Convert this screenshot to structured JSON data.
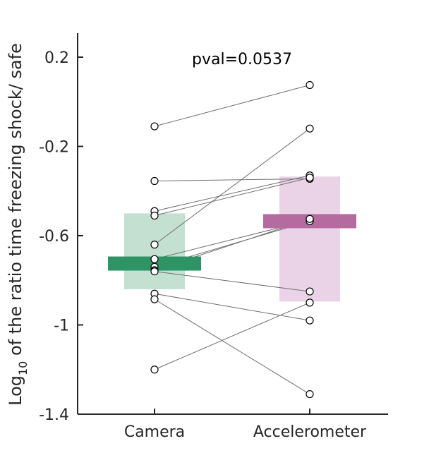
{
  "chart_data": {
    "type": "scatter",
    "title": "",
    "ylabel_parts": {
      "pre": "Log",
      "sub": "10",
      "post": " of the ratio time freezing shock/ safe"
    },
    "xlabel": "",
    "categories": [
      "Camera",
      "Accelerometer"
    ],
    "ylim": [
      -1.4,
      0.3
    ],
    "yticks": [
      0.2,
      -0.2,
      -0.6,
      -1,
      -1.4
    ],
    "ytick_labels": [
      "0.2",
      "-0.2",
      "-0.6",
      "-1",
      "-1.4"
    ],
    "annotation": "pval=0.0537",
    "grid": false,
    "colors": {
      "camera_mean": "#2e9466",
      "camera_range": "#c4e0d1",
      "accel_mean": "#b56aa0",
      "accel_range": "#ead3e6"
    },
    "summary": [
      {
        "category": "Camera",
        "mean": -0.725,
        "lower": -0.84,
        "upper": -0.5
      },
      {
        "category": "Accelerometer",
        "mean": -0.535,
        "lower": -0.895,
        "upper": -0.335
      }
    ],
    "pairs": [
      {
        "camera": -0.11,
        "accelerometer": 0.075
      },
      {
        "camera": -0.355,
        "accelerometer": -0.345
      },
      {
        "camera": -0.49,
        "accelerometer": -0.33
      },
      {
        "camera": -0.51,
        "accelerometer": -0.34
      },
      {
        "camera": -0.64,
        "accelerometer": -0.12
      },
      {
        "camera": -0.705,
        "accelerometer": -0.53
      },
      {
        "camera": -0.74,
        "accelerometer": -0.535
      },
      {
        "camera": -0.755,
        "accelerometer": -0.525
      },
      {
        "camera": -0.86,
        "accelerometer": -0.98
      },
      {
        "camera": -0.885,
        "accelerometer": -1.31
      },
      {
        "camera": -1.2,
        "accelerometer": -0.9
      },
      {
        "camera": -0.76,
        "accelerometer": -0.85
      }
    ]
  }
}
